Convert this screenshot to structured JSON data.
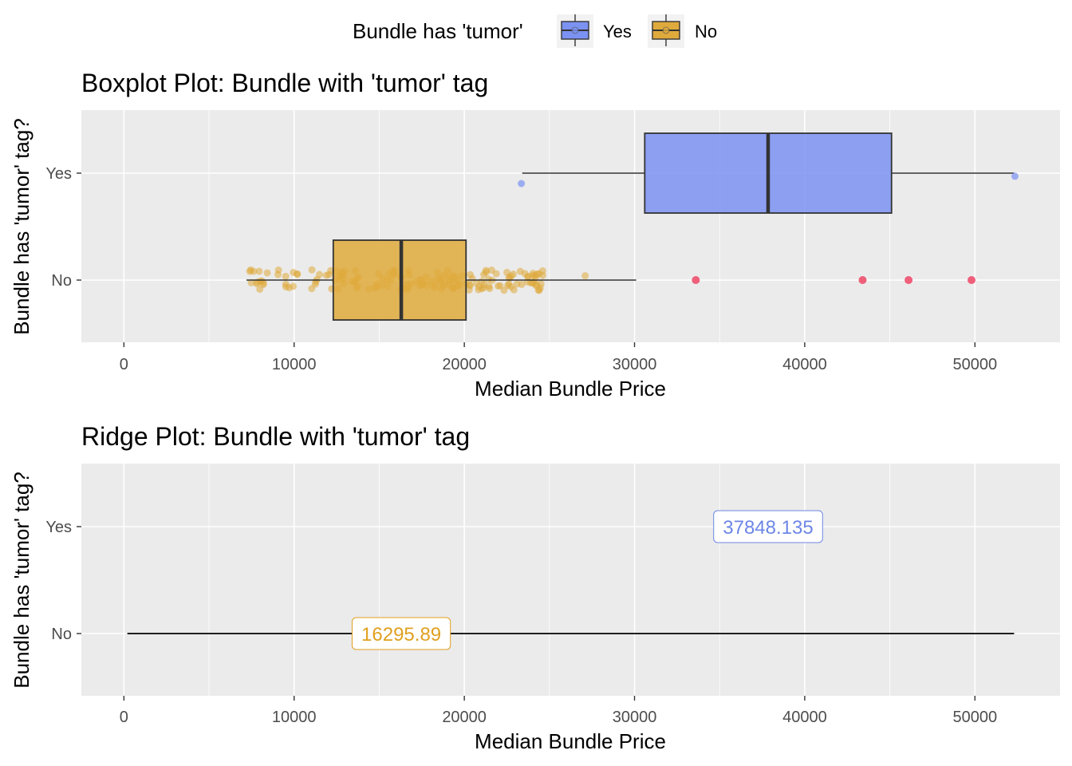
{
  "legend": {
    "title": "Bundle has 'tumor'",
    "items": [
      {
        "label": "Yes",
        "color": "#7B92F2"
      },
      {
        "label": "No",
        "color": "#DFAA3C"
      }
    ]
  },
  "colors": {
    "yes_fill": "#7B92F2",
    "yes_label": "#6D86E6",
    "no_fill": "#DFAA3C",
    "no_label": "#E0A020",
    "outlier_red": "#F0506E",
    "panel": "#EBEBEB"
  },
  "chart_data": [
    {
      "type": "boxplot",
      "title": "Boxplot Plot: Bundle with 'tumor' tag",
      "xlabel": "Median Bundle Price",
      "ylabel": "Bundle has 'tumor' tag?",
      "categories": [
        "Yes",
        "No"
      ],
      "xlim": [
        -2500,
        55000
      ],
      "x_ticks": [
        0,
        10000,
        20000,
        30000,
        40000,
        50000
      ],
      "grid": true,
      "legend_position": "top",
      "boxes": [
        {
          "category": "Yes",
          "whisker_low": 23400,
          "q1": 30600,
          "median": 37848.135,
          "q3": 45100,
          "whisker_high": 52300,
          "points": [
            23350,
            52350
          ],
          "outliers": []
        },
        {
          "category": "No",
          "whisker_low": 7200,
          "q1": 12300,
          "median": 16295.89,
          "q3": 20100,
          "whisker_high": 30100,
          "outliers": [
            33600,
            43400,
            46100,
            49800
          ]
        }
      ]
    },
    {
      "type": "ridge",
      "title": "Ridge Plot: Bundle with 'tumor' tag",
      "xlabel": "Median Bundle Price",
      "ylabel": "Bundle has 'tumor' tag?",
      "categories": [
        "Yes",
        "No"
      ],
      "xlim": [
        -2500,
        55000
      ],
      "x_ticks": [
        0,
        10000,
        20000,
        30000,
        40000,
        50000
      ],
      "grid": true,
      "baseline_range": [
        200,
        52300
      ],
      "median_labels": [
        {
          "category": "Yes",
          "value": 37848.135,
          "text": "37848.135"
        },
        {
          "category": "No",
          "value": 16295.89,
          "text": "16295.89"
        }
      ]
    }
  ]
}
